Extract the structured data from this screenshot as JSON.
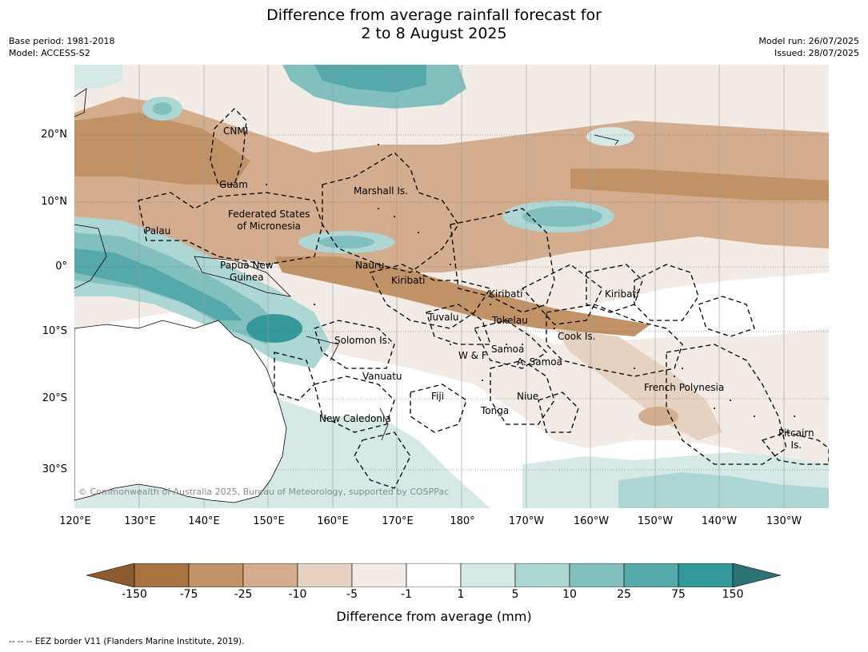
{
  "title_line1": "Difference from average rainfall forecast for",
  "title_line2": "2 to 8 August 2025",
  "meta": {
    "base_period": "Base period: 1981-2018",
    "model": "Model: ACCESS-S2",
    "model_run": "Model run: 26/07/2025",
    "issued": "Issued: 28/07/2025"
  },
  "lat_labels": [
    "20°N",
    "10°N",
    "0°",
    "10°S",
    "20°S",
    "30°S"
  ],
  "lon_labels": [
    "120°E",
    "130°E",
    "140°E",
    "150°E",
    "160°E",
    "170°E",
    "180°",
    "170°W",
    "160°W",
    "150°W",
    "140°W",
    "130°W"
  ],
  "places": {
    "cnmi": "CNMI",
    "guam": "Guam",
    "marshall": "Marshall Is.",
    "fsm1": "Federated States",
    "fsm2": "of Micronesia",
    "palau": "Palau",
    "png1": "Papua New",
    "png2": "Guinea",
    "nauru": "Nauru",
    "kiribati_w": "Kiribati",
    "kiribati_c": "Kiribati",
    "kiribati_e": "Kiribati",
    "tuvalu": "Tuvalu",
    "tokelau": "Tokelau",
    "cook": "Cook Is.",
    "solomon": "Solomon Is.",
    "samoa": "Samoa",
    "wf": "W & F",
    "asamoa": "A. Samoa",
    "vanuatu": "Vanuatu",
    "fiji": "Fiji",
    "niue": "Niue",
    "tonga": "Tonga",
    "frenchpoly": "French Polynesia",
    "pitcairn1": "Pitcairn",
    "pitcairn2": "Is.",
    "newcal": "New Caledonia"
  },
  "copyright": "© Commonwealth of Australia 2025, Bureau of Meteorology, supported by COSPPac",
  "colorbar": {
    "ticks": [
      "-150",
      "-75",
      "-25",
      "-10",
      "-5",
      "-1",
      "1",
      "5",
      "10",
      "25",
      "75",
      "150"
    ],
    "colors": [
      "#8c5a2e",
      "#a8733f",
      "#c09266",
      "#d3ad8d",
      "#e6d2c1",
      "#f3ebe5",
      "#ffffff",
      "#d5e9e7",
      "#acd7d5",
      "#82c0c0",
      "#55a9aa",
      "#34999a",
      "#2b7374"
    ],
    "label": "Difference from average (mm)"
  },
  "footer": "--  --  -- EEZ border V11 (Flanders Marine Institute, 2019)."
}
